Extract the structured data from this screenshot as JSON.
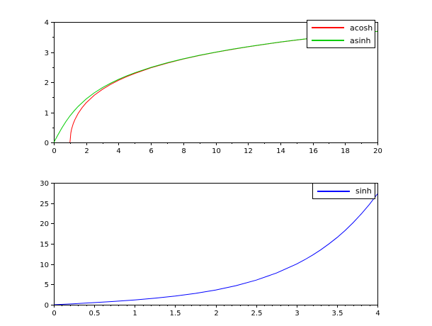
{
  "figure": {
    "background": "#ffffff",
    "axis_color": "#000000"
  },
  "chart_data": [
    {
      "type": "line",
      "title": "",
      "xlabel": "",
      "ylabel": "",
      "xlim": [
        0,
        20
      ],
      "ylim": [
        0,
        4
      ],
      "x_ticks": [
        0,
        2,
        4,
        6,
        8,
        10,
        12,
        14,
        16,
        18,
        20
      ],
      "y_ticks": [
        0,
        1,
        2,
        3,
        4
      ],
      "x_minor_divisions": 2,
      "y_minor_divisions": 2,
      "grid": false,
      "legend_position": "top-right",
      "series": [
        {
          "name": "acosh",
          "color": "#ff0000",
          "x": [
            1,
            1.05,
            1.1,
            1.2,
            1.3,
            1.5,
            1.75,
            2,
            2.5,
            3,
            3.5,
            4,
            4.5,
            5,
            6,
            7,
            8,
            9,
            10,
            11,
            12,
            13,
            14,
            15,
            16,
            17,
            18,
            19,
            20
          ],
          "y": [
            0,
            0.315,
            0.4436,
            0.6224,
            0.7564,
            0.9624,
            1.1588,
            1.317,
            1.5668,
            1.7627,
            1.9248,
            2.0634,
            2.1846,
            2.2924,
            2.4779,
            2.6339,
            2.7687,
            2.8872,
            2.9932,
            3.089,
            3.1763,
            3.2566,
            3.331,
            3.4001,
            3.4648,
            3.5254,
            3.5827,
            3.6369,
            3.6883
          ]
        },
        {
          "name": "asinh",
          "color": "#00cc00",
          "x": [
            0,
            0.1,
            0.25,
            0.5,
            0.75,
            1,
            1.25,
            1.5,
            2,
            2.5,
            3,
            3.5,
            4,
            4.5,
            5,
            6,
            7,
            8,
            9,
            10,
            11,
            12,
            13,
            14,
            15,
            16,
            17,
            18,
            19,
            20
          ],
          "y": [
            0,
            0.0998,
            0.2475,
            0.4812,
            0.6931,
            0.8814,
            1.0476,
            1.1948,
            1.4436,
            1.6472,
            1.8184,
            1.9657,
            2.0947,
            2.2094,
            2.3124,
            2.4918,
            2.6441,
            2.7765,
            2.8934,
            2.9982,
            3.0931,
            3.1798,
            3.2595,
            3.3335,
            3.4023,
            3.4667,
            3.5271,
            3.5843,
            3.6383,
            3.6896
          ]
        }
      ]
    },
    {
      "type": "line",
      "title": "",
      "xlabel": "",
      "ylabel": "",
      "xlim": [
        0,
        4
      ],
      "ylim": [
        0,
        30
      ],
      "x_ticks": [
        0,
        0.5,
        1,
        1.5,
        2,
        2.5,
        3,
        3.5,
        4
      ],
      "y_ticks": [
        0,
        5,
        10,
        15,
        20,
        25,
        30
      ],
      "x_minor_divisions": 5,
      "y_minor_divisions": 1,
      "grid": false,
      "legend_position": "top-right",
      "series": [
        {
          "name": "sinh",
          "color": "#0000ff",
          "x": [
            0,
            0.25,
            0.5,
            0.75,
            1,
            1.25,
            1.5,
            1.75,
            2,
            2.25,
            2.5,
            2.75,
            3,
            3.1,
            3.2,
            3.3,
            3.4,
            3.5,
            3.6,
            3.7,
            3.8,
            3.9,
            4
          ],
          "y": [
            0,
            0.2526,
            0.5211,
            0.8223,
            1.1752,
            1.6019,
            2.1293,
            2.7904,
            3.6269,
            4.6912,
            6.0502,
            7.7894,
            10.0179,
            11.0765,
            12.2459,
            13.5379,
            14.9654,
            16.5426,
            18.2855,
            20.2113,
            22.3394,
            24.6911,
            27.2899
          ]
        }
      ]
    }
  ]
}
